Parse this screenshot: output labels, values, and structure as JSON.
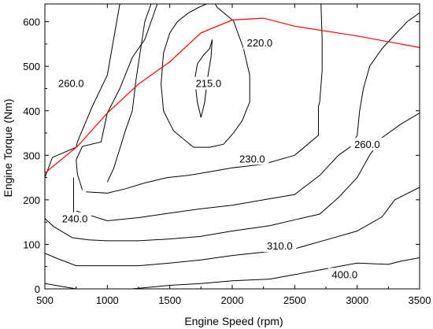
{
  "chart_data": {
    "type": "contour",
    "xlabel": "Engine Speed (rpm)",
    "ylabel": "Engine Torque (Nm)",
    "xlim": [
      500,
      3500
    ],
    "ylim": [
      0,
      640
    ],
    "xticks": [
      500,
      1000,
      1500,
      2000,
      2500,
      3000,
      3500
    ],
    "yticks": [
      0,
      100,
      200,
      300,
      400,
      500,
      600
    ],
    "grid": false,
    "colors": {
      "contour": "#000000",
      "max_torque_curve": "#ff0000"
    },
    "contour_lines": [
      {
        "level": "215.0",
        "points": [
          [
            1750,
            385
          ],
          [
            1720,
            420
          ],
          [
            1700,
            470
          ],
          [
            1720,
            505
          ],
          [
            1770,
            525
          ],
          [
            1820,
            540
          ],
          [
            1840,
            560
          ],
          [
            1830,
            520
          ],
          [
            1800,
            470
          ],
          [
            1780,
            420
          ],
          [
            1750,
            385
          ]
        ]
      },
      {
        "level": "220.0",
        "points": [
          [
            1690,
            318
          ],
          [
            1530,
            355
          ],
          [
            1450,
            400
          ],
          [
            1430,
            460
          ],
          [
            1450,
            530
          ],
          [
            1500,
            575
          ],
          [
            1560,
            600
          ],
          [
            1650,
            620
          ],
          [
            1730,
            632
          ],
          [
            1810,
            642
          ],
          [
            1860,
            642
          ],
          [
            1880,
            632
          ],
          [
            2010,
            602
          ],
          [
            2090,
            540
          ],
          [
            2140,
            480
          ],
          [
            2140,
            420
          ],
          [
            2080,
            378
          ],
          [
            2010,
            350
          ],
          [
            1930,
            325
          ],
          [
            1820,
            318
          ],
          [
            1690,
            318
          ]
        ]
      },
      {
        "level": "230.0",
        "points": [
          [
            800,
            222
          ],
          [
            760,
            258
          ],
          [
            750,
            290
          ],
          [
            800,
            320
          ],
          [
            950,
            330
          ],
          [
            1000,
            395
          ],
          [
            1100,
            450
          ],
          [
            1200,
            520
          ],
          [
            1300,
            560
          ],
          [
            1400,
            640
          ]
        ]
      },
      {
        "level": "230.0",
        "points": [
          [
            1000,
            240
          ],
          [
            1050,
            270
          ],
          [
            1150,
            360
          ],
          [
            1200,
            400
          ],
          [
            1230,
            470
          ],
          [
            1300,
            600
          ],
          [
            1350,
            640
          ]
        ]
      },
      {
        "level": "230.0",
        "points": [
          [
            830,
            218
          ],
          [
            1000,
            215
          ],
          [
            1150,
            225
          ],
          [
            1300,
            238
          ],
          [
            1480,
            250
          ],
          [
            1650,
            255
          ],
          [
            1800,
            262
          ],
          [
            2000,
            272
          ],
          [
            2250,
            280
          ],
          [
            2500,
            300
          ],
          [
            2690,
            345
          ],
          [
            2690,
            410
          ],
          [
            2700,
            420
          ],
          [
            2720,
            490
          ],
          [
            2720,
            560
          ],
          [
            2710,
            640
          ]
        ]
      },
      {
        "level": "240.0",
        "points": [
          [
            750,
            175
          ],
          [
            1000,
            153
          ],
          [
            1250,
            160
          ],
          [
            1500,
            170
          ],
          [
            1750,
            180
          ],
          [
            2000,
            188
          ],
          [
            2250,
            200
          ],
          [
            2500,
            212
          ],
          [
            2700,
            255
          ],
          [
            2850,
            300
          ],
          [
            2950,
            320
          ],
          [
            3000,
            345
          ],
          [
            3020,
            400
          ],
          [
            3050,
            450
          ],
          [
            3100,
            500
          ],
          [
            3200,
            540
          ],
          [
            3400,
            600
          ],
          [
            3500,
            620
          ]
        ]
      },
      {
        "level": "260.0",
        "points": [
          [
            500,
            158
          ],
          [
            570,
            140
          ],
          [
            720,
            115
          ],
          [
            850,
            110
          ],
          [
            1000,
            108
          ],
          [
            1250,
            108
          ],
          [
            1500,
            112
          ],
          [
            1750,
            118
          ],
          [
            2000,
            130
          ],
          [
            2300,
            142
          ],
          [
            2500,
            155
          ],
          [
            2700,
            168
          ],
          [
            2850,
            205
          ],
          [
            3000,
            250
          ],
          [
            3100,
            300
          ],
          [
            3200,
            340
          ],
          [
            3350,
            370
          ],
          [
            3500,
            395
          ]
        ]
      },
      {
        "level": "260.0",
        "points": [
          [
            500,
            250
          ],
          [
            560,
            295
          ],
          [
            750,
            318
          ],
          [
            760,
            330
          ],
          [
            880,
            410
          ],
          [
            1000,
            480
          ],
          [
            1100,
            640
          ]
        ]
      },
      {
        "level": "260.0",
        "points": [
          [
            730,
            250
          ],
          [
            730,
            160
          ]
        ]
      },
      {
        "level": "310.0",
        "points": [
          [
            500,
            80
          ],
          [
            600,
            68
          ],
          [
            750,
            52
          ],
          [
            1000,
            52
          ],
          [
            1250,
            52
          ],
          [
            1500,
            58
          ],
          [
            1750,
            65
          ],
          [
            2000,
            75
          ],
          [
            2500,
            90
          ],
          [
            2750,
            110
          ],
          [
            3000,
            130
          ],
          [
            3200,
            162
          ],
          [
            3300,
            200
          ],
          [
            3500,
            228
          ]
        ]
      },
      {
        "level": "400.0",
        "points": [
          [
            500,
            12
          ],
          [
            750,
            0
          ]
        ]
      },
      {
        "level": "400.0",
        "points": [
          [
            1200,
            0
          ],
          [
            1500,
            8
          ],
          [
            1750,
            12
          ],
          [
            2000,
            18
          ],
          [
            2300,
            22
          ],
          [
            2500,
            32
          ],
          [
            2750,
            45
          ],
          [
            3000,
            58
          ],
          [
            3250,
            55
          ],
          [
            3350,
            62
          ],
          [
            3500,
            70
          ]
        ]
      }
    ],
    "max_torque_curve": {
      "points": [
        [
          500,
          260
        ],
        [
          760,
          320
        ],
        [
          1000,
          395
        ],
        [
          1250,
          460
        ],
        [
          1500,
          510
        ],
        [
          1750,
          575
        ],
        [
          2000,
          604
        ],
        [
          2250,
          608
        ],
        [
          2500,
          590
        ],
        [
          3000,
          568
        ],
        [
          3500,
          542
        ]
      ]
    },
    "contour_labels": [
      {
        "text": "260.0",
        "x": 710,
        "y": 462
      },
      {
        "text": "215.0",
        "x": 1810,
        "y": 462
      },
      {
        "text": "220.0",
        "x": 2220,
        "y": 553
      },
      {
        "text": "230.0",
        "x": 2160,
        "y": 293
      },
      {
        "text": "260.0",
        "x": 3080,
        "y": 325
      },
      {
        "text": "240.0",
        "x": 740,
        "y": 158
      },
      {
        "text": "310.0",
        "x": 2380,
        "y": 97
      },
      {
        "text": "400.0",
        "x": 2900,
        "y": 33
      }
    ]
  }
}
